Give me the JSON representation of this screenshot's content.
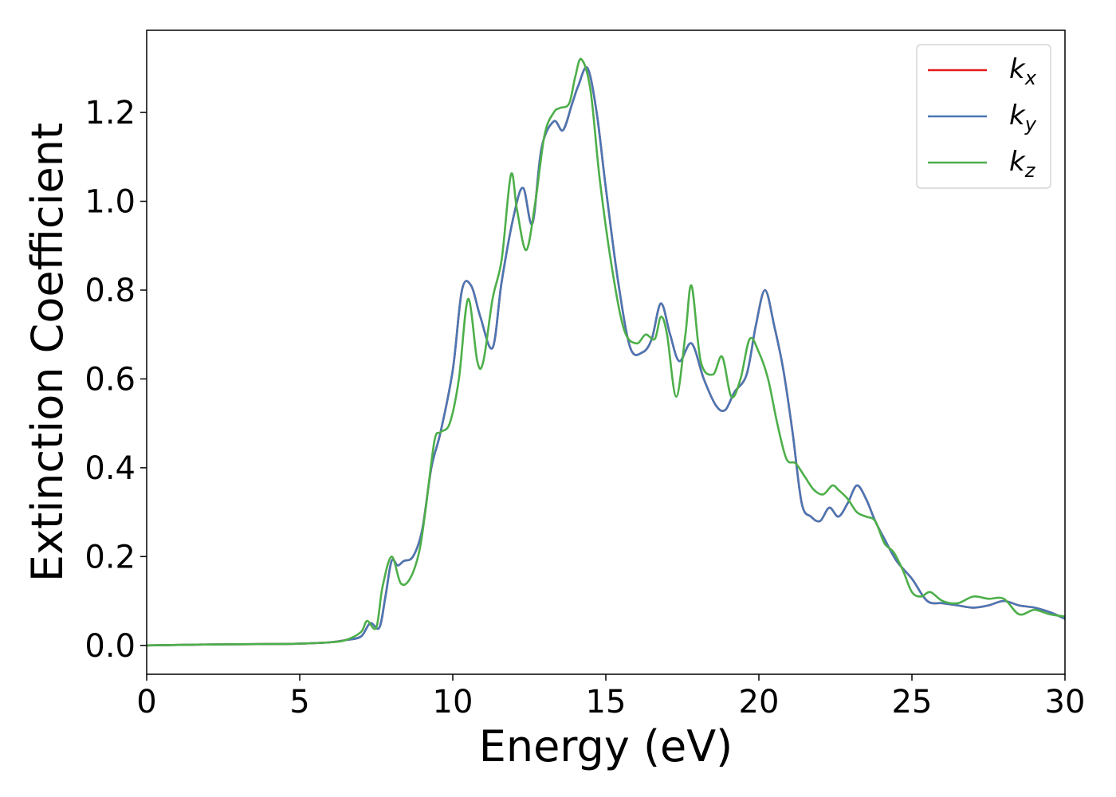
{
  "chart_data": {
    "type": "line",
    "title": "",
    "xlabel": "Energy (eV)",
    "ylabel": "Extinction Coefficient",
    "xlim": [
      0,
      30
    ],
    "ylim": [
      -0.065,
      1.385
    ],
    "xticks": [
      0,
      5,
      10,
      15,
      20,
      25,
      30
    ],
    "yticks": [
      0.0,
      0.2,
      0.4,
      0.6,
      0.8,
      1.0,
      1.2
    ],
    "grid": false,
    "legend_position": "top-right",
    "series": [
      {
        "name": "k_x",
        "label_base": "k",
        "label_sub": "x",
        "color": "#e41a1c",
        "x": [
          0,
          2,
          4,
          5,
          6,
          6.5,
          7,
          7.3,
          7.6,
          7.8,
          8.0,
          8.2,
          8.4,
          8.7,
          9.0,
          9.3,
          9.6,
          10.0,
          10.3,
          10.6,
          10.9,
          11.3,
          11.6,
          12.0,
          12.3,
          12.6,
          12.9,
          13.3,
          13.6,
          13.9,
          14.1,
          14.4,
          14.7,
          15.0,
          15.4,
          15.8,
          16.2,
          16.5,
          16.8,
          17.1,
          17.4,
          17.8,
          18.2,
          18.6,
          18.9,
          19.2,
          19.6,
          19.9,
          20.2,
          20.5,
          20.8,
          21.1,
          21.4,
          21.7,
          22.0,
          22.3,
          22.6,
          22.9,
          23.2,
          23.5,
          23.8,
          24.1,
          24.5,
          25.0,
          25.5,
          26.0,
          26.5,
          27.0,
          27.5,
          28.0,
          28.5,
          29.0,
          29.5,
          30.0
        ],
        "values": [
          0.0,
          0.002,
          0.003,
          0.004,
          0.007,
          0.012,
          0.02,
          0.05,
          0.04,
          0.11,
          0.19,
          0.18,
          0.19,
          0.2,
          0.26,
          0.4,
          0.48,
          0.62,
          0.8,
          0.81,
          0.74,
          0.67,
          0.82,
          0.97,
          1.03,
          0.95,
          1.12,
          1.18,
          1.16,
          1.22,
          1.26,
          1.3,
          1.2,
          1.03,
          0.82,
          0.67,
          0.66,
          0.69,
          0.77,
          0.7,
          0.64,
          0.68,
          0.6,
          0.54,
          0.53,
          0.57,
          0.61,
          0.72,
          0.8,
          0.72,
          0.62,
          0.48,
          0.32,
          0.29,
          0.28,
          0.31,
          0.29,
          0.32,
          0.36,
          0.33,
          0.28,
          0.24,
          0.19,
          0.15,
          0.1,
          0.095,
          0.09,
          0.085,
          0.09,
          0.1,
          0.09,
          0.085,
          0.075,
          0.06
        ]
      },
      {
        "name": "k_y",
        "label_base": "k",
        "label_sub": "y",
        "color": "#4a77b4",
        "x": [
          0,
          2,
          4,
          5,
          6,
          6.5,
          7,
          7.3,
          7.6,
          7.8,
          8.0,
          8.2,
          8.4,
          8.7,
          9.0,
          9.3,
          9.6,
          10.0,
          10.3,
          10.6,
          10.9,
          11.3,
          11.6,
          12.0,
          12.3,
          12.6,
          12.9,
          13.3,
          13.6,
          13.9,
          14.1,
          14.4,
          14.7,
          15.0,
          15.4,
          15.8,
          16.2,
          16.5,
          16.8,
          17.1,
          17.4,
          17.8,
          18.2,
          18.6,
          18.9,
          19.2,
          19.6,
          19.9,
          20.2,
          20.5,
          20.8,
          21.1,
          21.4,
          21.7,
          22.0,
          22.3,
          22.6,
          22.9,
          23.2,
          23.5,
          23.8,
          24.1,
          24.5,
          25.0,
          25.5,
          26.0,
          26.5,
          27.0,
          27.5,
          28.0,
          28.5,
          29.0,
          29.5,
          30.0
        ],
        "values": [
          0.0,
          0.002,
          0.003,
          0.004,
          0.007,
          0.012,
          0.02,
          0.05,
          0.04,
          0.11,
          0.19,
          0.18,
          0.19,
          0.2,
          0.26,
          0.4,
          0.48,
          0.62,
          0.8,
          0.81,
          0.74,
          0.67,
          0.82,
          0.97,
          1.03,
          0.95,
          1.12,
          1.18,
          1.16,
          1.22,
          1.26,
          1.3,
          1.2,
          1.03,
          0.82,
          0.67,
          0.66,
          0.69,
          0.77,
          0.7,
          0.64,
          0.68,
          0.6,
          0.54,
          0.53,
          0.57,
          0.61,
          0.72,
          0.8,
          0.72,
          0.62,
          0.48,
          0.32,
          0.29,
          0.28,
          0.31,
          0.29,
          0.32,
          0.36,
          0.33,
          0.28,
          0.24,
          0.19,
          0.15,
          0.1,
          0.095,
          0.09,
          0.085,
          0.09,
          0.1,
          0.09,
          0.085,
          0.075,
          0.06
        ]
      },
      {
        "name": "k_z",
        "label_base": "k",
        "label_sub": "z",
        "color": "#4daf4a",
        "x": [
          0,
          2,
          4,
          5,
          6,
          6.5,
          7,
          7.2,
          7.5,
          7.7,
          8.0,
          8.3,
          8.6,
          8.9,
          9.1,
          9.4,
          9.6,
          9.9,
          10.2,
          10.5,
          10.8,
          11.0,
          11.3,
          11.6,
          11.9,
          12.1,
          12.4,
          12.7,
          13.0,
          13.3,
          13.5,
          13.8,
          14.0,
          14.2,
          14.5,
          14.8,
          15.2,
          15.6,
          16.0,
          16.3,
          16.6,
          16.8,
          17.0,
          17.3,
          17.6,
          17.8,
          18.1,
          18.5,
          18.8,
          19.1,
          19.4,
          19.7,
          20.0,
          20.3,
          20.6,
          20.9,
          21.2,
          21.5,
          21.8,
          22.1,
          22.4,
          22.6,
          22.9,
          23.2,
          23.5,
          23.8,
          24.1,
          24.4,
          24.7,
          25.0,
          25.3,
          25.6,
          26.0,
          26.5,
          27.0,
          27.5,
          28.0,
          28.5,
          29.0,
          29.5,
          30.0
        ],
        "values": [
          0.0,
          0.002,
          0.003,
          0.004,
          0.007,
          0.012,
          0.03,
          0.055,
          0.04,
          0.13,
          0.2,
          0.14,
          0.15,
          0.21,
          0.3,
          0.46,
          0.48,
          0.5,
          0.6,
          0.78,
          0.64,
          0.64,
          0.78,
          0.87,
          1.06,
          0.98,
          0.89,
          1.0,
          1.15,
          1.2,
          1.21,
          1.22,
          1.28,
          1.32,
          1.25,
          1.05,
          0.85,
          0.71,
          0.68,
          0.7,
          0.69,
          0.74,
          0.7,
          0.56,
          0.7,
          0.81,
          0.64,
          0.61,
          0.65,
          0.56,
          0.6,
          0.69,
          0.66,
          0.6,
          0.5,
          0.42,
          0.41,
          0.38,
          0.35,
          0.34,
          0.36,
          0.35,
          0.33,
          0.3,
          0.29,
          0.28,
          0.23,
          0.21,
          0.17,
          0.12,
          0.11,
          0.12,
          0.1,
          0.095,
          0.11,
          0.105,
          0.105,
          0.07,
          0.08,
          0.07,
          0.065
        ]
      }
    ]
  }
}
